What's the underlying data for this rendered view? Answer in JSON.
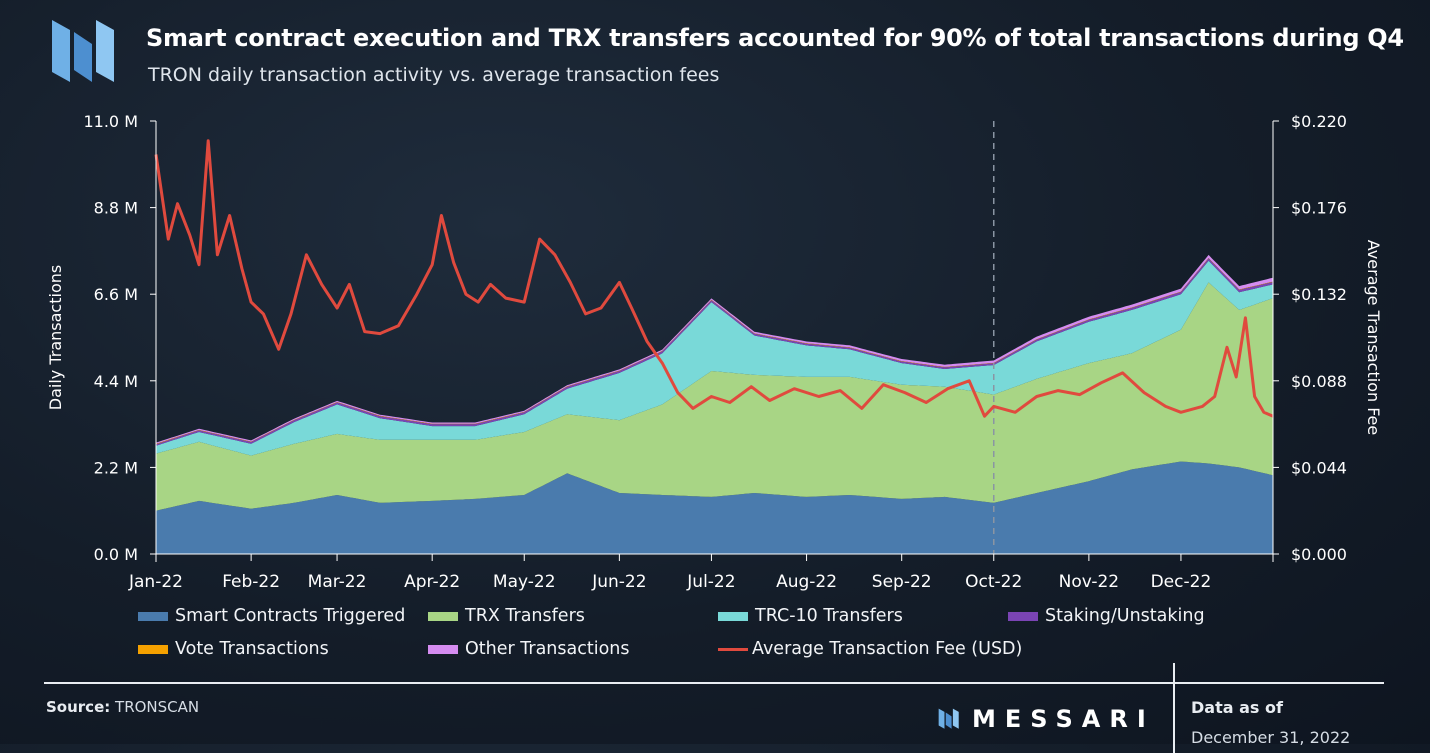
{
  "header": {
    "title": "Smart contract execution and TRX transfers accounted for 90% of total transactions during Q4",
    "subtitle": "TRON daily transaction activity vs. average transaction fees"
  },
  "footer": {
    "source_label": "Source:",
    "source_value": "TRONSCAN",
    "brand": "MESSARI",
    "data_as_of_label": "Data as of",
    "data_as_of_date": "December 31, 2022"
  },
  "colors": {
    "smart_contracts": "#4a7bad",
    "trx_transfers": "#a8d585",
    "trc10": "#79d9d8",
    "staking": "#7a44b4",
    "vote": "#f5a100",
    "other": "#d58cf0",
    "fee_line": "#e04a3e",
    "axis": "#ffffff",
    "divider": "#8a95a3"
  },
  "chart_data": {
    "type": "area",
    "stacked": true,
    "secondary_series_type": "line",
    "x_range": [
      "2022-01-01",
      "2022-12-31"
    ],
    "x_ticks": [
      "Jan-22",
      "Feb-22",
      "Mar-22",
      "Apr-22",
      "May-22",
      "Jun-22",
      "Jul-22",
      "Aug-22",
      "Sep-22",
      "Oct-22",
      "Nov-22",
      "Dec-22"
    ],
    "ylabel": "Daily Transactions",
    "y2label": "Average Transaction Fee",
    "y_ticks": [
      "0.0 M",
      "2.2 M",
      "4.4 M",
      "6.6 M",
      "8.8 M",
      "11.0 M"
    ],
    "y2_ticks": [
      "$0.000",
      "$0.044",
      "$0.088",
      "$0.132",
      "$0.176",
      "$0.220"
    ],
    "ylim": [
      0,
      11.0
    ],
    "y2lim": [
      0,
      0.22
    ],
    "marker_line": "2022-10-01",
    "legend_position": "bottom",
    "series": [
      {
        "name": "Smart Contracts Triggered",
        "axis": "left",
        "unit": "M",
        "points": [
          [
            "2022-01-01",
            1.1
          ],
          [
            "2022-01-15",
            1.35
          ],
          [
            "2022-02-01",
            1.15
          ],
          [
            "2022-02-15",
            1.3
          ],
          [
            "2022-03-01",
            1.5
          ],
          [
            "2022-03-15",
            1.3
          ],
          [
            "2022-04-01",
            1.35
          ],
          [
            "2022-04-15",
            1.4
          ],
          [
            "2022-05-01",
            1.5
          ],
          [
            "2022-05-15",
            2.05
          ],
          [
            "2022-06-01",
            1.55
          ],
          [
            "2022-06-15",
            1.5
          ],
          [
            "2022-07-01",
            1.45
          ],
          [
            "2022-07-15",
            1.55
          ],
          [
            "2022-08-01",
            1.45
          ],
          [
            "2022-08-15",
            1.5
          ],
          [
            "2022-09-01",
            1.4
          ],
          [
            "2022-09-15",
            1.45
          ],
          [
            "2022-10-01",
            1.3
          ],
          [
            "2022-10-15",
            1.55
          ],
          [
            "2022-11-01",
            1.85
          ],
          [
            "2022-11-15",
            2.15
          ],
          [
            "2022-12-01",
            2.35
          ],
          [
            "2022-12-10",
            2.3
          ],
          [
            "2022-12-20",
            2.2
          ],
          [
            "2022-12-31",
            2.0
          ]
        ]
      },
      {
        "name": "TRX Transfers",
        "axis": "left",
        "unit": "M",
        "points": [
          [
            "2022-01-01",
            1.45
          ],
          [
            "2022-01-15",
            1.5
          ],
          [
            "2022-02-01",
            1.35
          ],
          [
            "2022-02-15",
            1.5
          ],
          [
            "2022-03-01",
            1.55
          ],
          [
            "2022-03-15",
            1.6
          ],
          [
            "2022-04-01",
            1.55
          ],
          [
            "2022-04-15",
            1.5
          ],
          [
            "2022-05-01",
            1.6
          ],
          [
            "2022-05-15",
            1.5
          ],
          [
            "2022-06-01",
            1.85
          ],
          [
            "2022-06-15",
            2.3
          ],
          [
            "2022-07-01",
            3.2
          ],
          [
            "2022-07-15",
            3.0
          ],
          [
            "2022-08-01",
            3.05
          ],
          [
            "2022-08-15",
            3.0
          ],
          [
            "2022-09-01",
            2.9
          ],
          [
            "2022-09-15",
            2.8
          ],
          [
            "2022-10-01",
            2.75
          ],
          [
            "2022-10-15",
            2.9
          ],
          [
            "2022-11-01",
            3.0
          ],
          [
            "2022-11-15",
            2.95
          ],
          [
            "2022-12-01",
            3.35
          ],
          [
            "2022-12-10",
            4.6
          ],
          [
            "2022-12-20",
            4.0
          ],
          [
            "2022-12-31",
            4.5
          ]
        ]
      },
      {
        "name": "TRC-10 Transfers",
        "axis": "left",
        "unit": "M",
        "points": [
          [
            "2022-01-01",
            0.2
          ],
          [
            "2022-01-15",
            0.25
          ],
          [
            "2022-02-01",
            0.3
          ],
          [
            "2022-02-15",
            0.55
          ],
          [
            "2022-03-01",
            0.75
          ],
          [
            "2022-03-15",
            0.55
          ],
          [
            "2022-04-01",
            0.35
          ],
          [
            "2022-04-15",
            0.35
          ],
          [
            "2022-05-01",
            0.45
          ],
          [
            "2022-05-15",
            0.65
          ],
          [
            "2022-06-01",
            1.2
          ],
          [
            "2022-06-15",
            1.3
          ],
          [
            "2022-07-01",
            1.75
          ],
          [
            "2022-07-15",
            1.0
          ],
          [
            "2022-08-01",
            0.8
          ],
          [
            "2022-08-15",
            0.7
          ],
          [
            "2022-09-01",
            0.55
          ],
          [
            "2022-09-15",
            0.45
          ],
          [
            "2022-10-01",
            0.75
          ],
          [
            "2022-10-15",
            0.95
          ],
          [
            "2022-11-01",
            1.05
          ],
          [
            "2022-11-15",
            1.1
          ],
          [
            "2022-12-01",
            0.9
          ],
          [
            "2022-12-10",
            0.55
          ],
          [
            "2022-12-20",
            0.45
          ],
          [
            "2022-12-31",
            0.35
          ]
        ]
      },
      {
        "name": "Staking/Unstaking",
        "axis": "left",
        "unit": "M",
        "points": [
          [
            "2022-01-01",
            0.04
          ],
          [
            "2022-03-01",
            0.05
          ],
          [
            "2022-06-01",
            0.05
          ],
          [
            "2022-09-01",
            0.04
          ],
          [
            "2022-11-01",
            0.05
          ],
          [
            "2022-12-15",
            0.06
          ],
          [
            "2022-12-31",
            0.06
          ]
        ]
      },
      {
        "name": "Vote Transactions",
        "axis": "left",
        "unit": "M",
        "points": [
          [
            "2022-01-01",
            0.01
          ],
          [
            "2022-12-31",
            0.01
          ]
        ]
      },
      {
        "name": "Other Transactions",
        "axis": "left",
        "unit": "M",
        "points": [
          [
            "2022-01-01",
            0.03
          ],
          [
            "2022-06-01",
            0.03
          ],
          [
            "2022-12-15",
            0.08
          ],
          [
            "2022-12-31",
            0.1
          ]
        ]
      },
      {
        "name": "Average Transaction Fee (USD)",
        "axis": "right",
        "type": "line",
        "points": [
          [
            "2022-01-01",
            0.203
          ],
          [
            "2022-01-05",
            0.16
          ],
          [
            "2022-01-08",
            0.178
          ],
          [
            "2022-01-12",
            0.162
          ],
          [
            "2022-01-15",
            0.147
          ],
          [
            "2022-01-18",
            0.21
          ],
          [
            "2022-01-21",
            0.152
          ],
          [
            "2022-01-25",
            0.172
          ],
          [
            "2022-01-29",
            0.145
          ],
          [
            "2022-02-01",
            0.128
          ],
          [
            "2022-02-05",
            0.122
          ],
          [
            "2022-02-10",
            0.104
          ],
          [
            "2022-02-14",
            0.122
          ],
          [
            "2022-02-19",
            0.152
          ],
          [
            "2022-02-24",
            0.137
          ],
          [
            "2022-03-01",
            0.125
          ],
          [
            "2022-03-05",
            0.137
          ],
          [
            "2022-03-10",
            0.113
          ],
          [
            "2022-03-15",
            0.112
          ],
          [
            "2022-03-21",
            0.116
          ],
          [
            "2022-03-27",
            0.132
          ],
          [
            "2022-04-01",
            0.147
          ],
          [
            "2022-04-04",
            0.172
          ],
          [
            "2022-04-08",
            0.148
          ],
          [
            "2022-04-12",
            0.132
          ],
          [
            "2022-04-16",
            0.128
          ],
          [
            "2022-04-20",
            0.137
          ],
          [
            "2022-04-25",
            0.13
          ],
          [
            "2022-05-01",
            0.128
          ],
          [
            "2022-05-06",
            0.16
          ],
          [
            "2022-05-11",
            0.152
          ],
          [
            "2022-05-16",
            0.138
          ],
          [
            "2022-05-21",
            0.122
          ],
          [
            "2022-05-26",
            0.125
          ],
          [
            "2022-06-01",
            0.138
          ],
          [
            "2022-06-05",
            0.125
          ],
          [
            "2022-06-10",
            0.108
          ],
          [
            "2022-06-15",
            0.097
          ],
          [
            "2022-06-20",
            0.082
          ],
          [
            "2022-06-25",
            0.074
          ],
          [
            "2022-07-01",
            0.08
          ],
          [
            "2022-07-07",
            0.077
          ],
          [
            "2022-07-14",
            0.085
          ],
          [
            "2022-07-20",
            0.078
          ],
          [
            "2022-07-28",
            0.084
          ],
          [
            "2022-08-05",
            0.08
          ],
          [
            "2022-08-12",
            0.083
          ],
          [
            "2022-08-19",
            0.074
          ],
          [
            "2022-08-26",
            0.086
          ],
          [
            "2022-09-02",
            0.082
          ],
          [
            "2022-09-09",
            0.077
          ],
          [
            "2022-09-16",
            0.084
          ],
          [
            "2022-09-23",
            0.088
          ],
          [
            "2022-09-28",
            0.07
          ],
          [
            "2022-10-01",
            0.075
          ],
          [
            "2022-10-08",
            0.072
          ],
          [
            "2022-10-15",
            0.08
          ],
          [
            "2022-10-22",
            0.083
          ],
          [
            "2022-10-29",
            0.081
          ],
          [
            "2022-11-05",
            0.087
          ],
          [
            "2022-11-12",
            0.092
          ],
          [
            "2022-11-19",
            0.082
          ],
          [
            "2022-11-26",
            0.075
          ],
          [
            "2022-12-01",
            0.072
          ],
          [
            "2022-12-08",
            0.075
          ],
          [
            "2022-12-12",
            0.08
          ],
          [
            "2022-12-16",
            0.105
          ],
          [
            "2022-12-19",
            0.09
          ],
          [
            "2022-12-22",
            0.12
          ],
          [
            "2022-12-25",
            0.08
          ],
          [
            "2022-12-28",
            0.072
          ],
          [
            "2022-12-31",
            0.07
          ]
        ]
      }
    ]
  },
  "legend": [
    {
      "label": "Smart Contracts Triggered",
      "color": "#4a7bad",
      "kind": "box"
    },
    {
      "label": "TRX Transfers",
      "color": "#a8d585",
      "kind": "box"
    },
    {
      "label": "TRC-10 Transfers",
      "color": "#79d9d8",
      "kind": "box"
    },
    {
      "label": "Staking/Unstaking",
      "color": "#7a44b4",
      "kind": "box"
    },
    {
      "label": "Vote Transactions",
      "color": "#f5a100",
      "kind": "box"
    },
    {
      "label": "Other Transactions",
      "color": "#d58cf0",
      "kind": "box"
    },
    {
      "label": "Average Transaction Fee (USD)",
      "color": "#e04a3e",
      "kind": "line"
    }
  ]
}
